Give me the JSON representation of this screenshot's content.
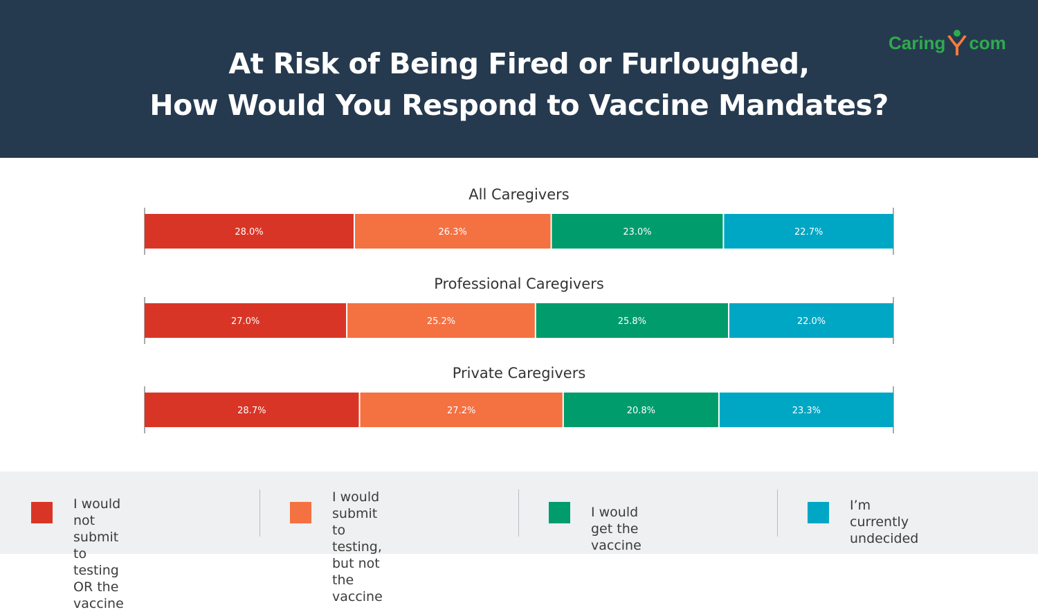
{
  "header": {
    "title_line1": "At Risk of Being Fired or Furloughed,",
    "title_line2": "How Would You Respond to Vaccine Mandates?",
    "logo_left": "Caring",
    "logo_right": "com"
  },
  "colors": {
    "header_bg": "#263a4f",
    "footer_bg": "#eef0f1",
    "logo_green": "#2eab4d",
    "logo_orange": "#f47c3c"
  },
  "chart_data": {
    "type": "bar",
    "orientation": "horizontal",
    "stacked": "percent",
    "xlim": [
      0,
      100
    ],
    "legend_position": "bottom",
    "categories": [
      "All Caregivers",
      "Professional Caregivers",
      "Private Caregivers"
    ],
    "series": [
      {
        "name": "I would not submit to testing OR the vaccine",
        "color": "#d93526",
        "values": [
          28.0,
          27.0,
          28.7
        ],
        "labels": [
          "28.0%",
          "27.0%",
          "28.7%"
        ]
      },
      {
        "name": "I would submit to testing, but not the vaccine",
        "color": "#f47142",
        "values": [
          26.3,
          25.2,
          27.2
        ],
        "labels": [
          "26.3%",
          "25.2%",
          "27.2%"
        ]
      },
      {
        "name": "I would get the vaccine",
        "color": "#009c6b",
        "values": [
          23.0,
          25.8,
          20.8
        ],
        "labels": [
          "23.0%",
          "25.8%",
          "20.8%"
        ]
      },
      {
        "name": "I’m currently undecided",
        "color": "#00a7c4",
        "values": [
          22.7,
          22.0,
          23.3
        ],
        "labels": [
          "22.7%",
          "22.0%",
          "23.3%"
        ]
      }
    ]
  },
  "legend": [
    {
      "lines": [
        "I would not submit to",
        "testing OR the vaccine"
      ]
    },
    {
      "lines": [
        "I would submit to",
        "testing, but not the",
        "vaccine"
      ]
    },
    {
      "lines": [
        "I would get the vaccine"
      ]
    },
    {
      "lines": [
        "I’m currently",
        "undecided"
      ]
    }
  ]
}
